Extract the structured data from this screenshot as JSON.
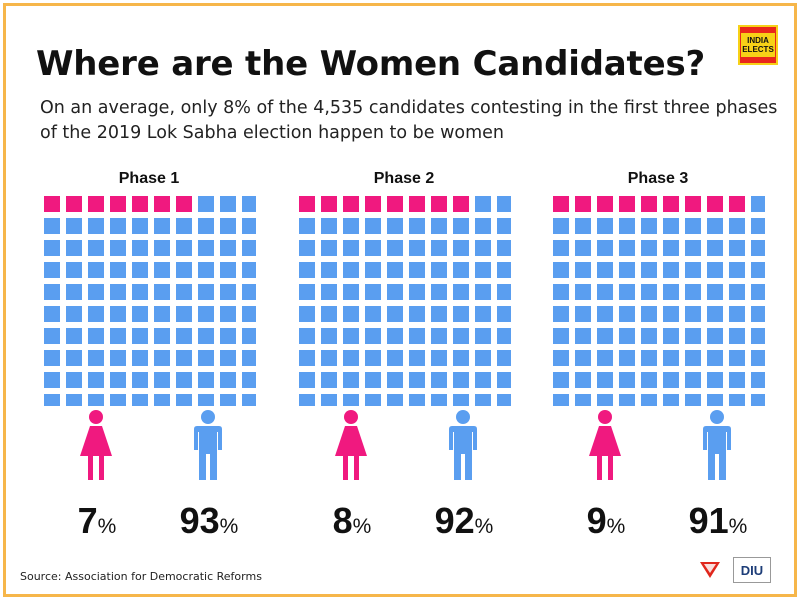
{
  "header": {
    "title": "Where are the Women Candidates?",
    "subtitle": "On an average, only 8% of the 4,535 candidates contesting in the first three phases of the 2019 Lok Sabha election happen to be women",
    "logo_line1": "INDIA",
    "logo_line2": "ELECTS"
  },
  "colors": {
    "women": "#f0197f",
    "men": "#5a9ef0",
    "border": "#f6b64a"
  },
  "chart_data": {
    "type": "waffle",
    "grid": [
      10,
      10
    ],
    "categories": [
      "Women",
      "Men"
    ],
    "panels": [
      {
        "title": "Phase 1",
        "women": 7,
        "men": 93,
        "women_label": "7",
        "men_label": "93",
        "unit": "%"
      },
      {
        "title": "Phase 2",
        "women": 8,
        "men": 92,
        "women_label": "8",
        "men_label": "92",
        "unit": "%"
      },
      {
        "title": "Phase 3",
        "women": 9,
        "men": 91,
        "women_label": "9",
        "men_label": "91",
        "unit": "%"
      }
    ]
  },
  "footer": {
    "source": "Source: Association for Democratic Reforms",
    "brand_text": "DIU"
  }
}
